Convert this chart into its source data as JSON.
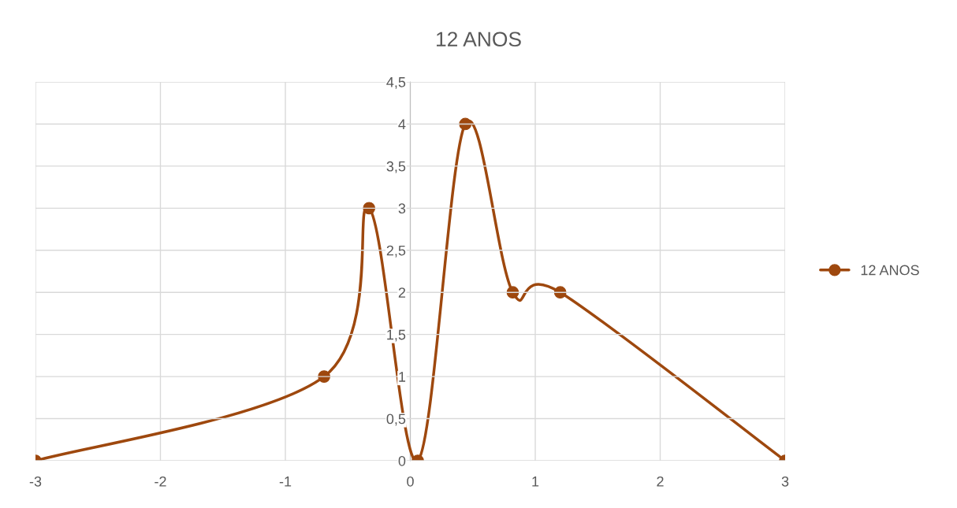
{
  "chart_data": {
    "type": "line",
    "title": "12 ANOS",
    "x": [
      -3,
      -0.69,
      -0.33,
      0.06,
      0.44,
      0.82,
      1.2,
      3
    ],
    "series": [
      {
        "name": "12 ANOS",
        "color": "#9e480e",
        "values": [
          0,
          1,
          3,
          0,
          4,
          2,
          2,
          0
        ]
      }
    ],
    "xlim": [
      -3,
      3
    ],
    "xticks": [
      -3,
      -2,
      -1,
      0,
      1,
      2,
      3
    ],
    "ylim": [
      0,
      4.5
    ],
    "yticks": [
      0,
      {
        "value": 0.5,
        "label": "0,5"
      },
      1,
      {
        "value": 1.5,
        "label": "1,5"
      },
      2,
      {
        "value": 2.5,
        "label": "2,5"
      },
      3,
      {
        "value": 3.5,
        "label": "3,5"
      },
      4,
      {
        "value": 4.5,
        "label": "4,5"
      }
    ],
    "grid": true,
    "legend": "right",
    "marker": "circle",
    "line_style": "solid"
  }
}
